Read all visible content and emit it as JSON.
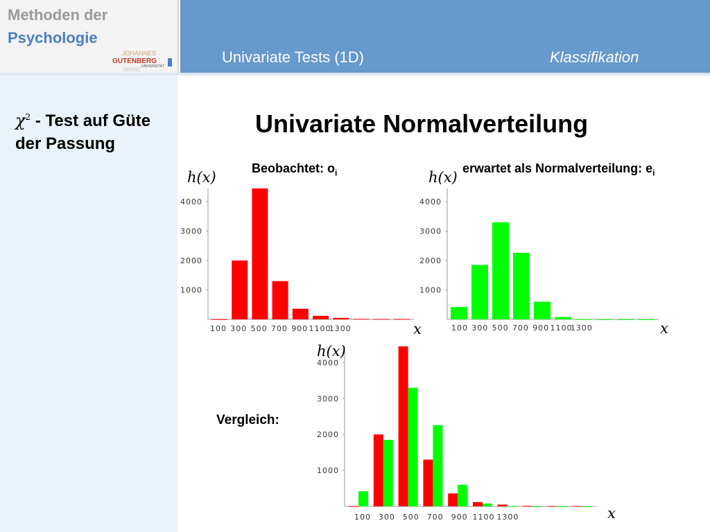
{
  "header": {
    "logo_line1": "Methoden der",
    "logo_line2": "Psychologie",
    "uni_logo_top": "JOHANNES",
    "uni_logo_main": "GUTENBERG",
    "uni_logo_sub": "UNIVERSITÄT",
    "uni_logo_city": "MAINZ",
    "title": "Univariate Tests (1D)",
    "section": "Klassifikation"
  },
  "sidebar": {
    "symbol": "χ",
    "symbol_sup": "2",
    "title_rest": " - Test auf Güte der Passung"
  },
  "main": {
    "title": "Univariate Normalverteilung",
    "observed_label": "Beobachtet: o",
    "observed_sub": "i",
    "expected_label": "erwartet als Normalverteilung: e",
    "expected_sub": "i",
    "comparison_label": "Vergleich:"
  },
  "colors": {
    "observed": "#ff0000",
    "expected": "#00ff00",
    "header_bar": "#6699cc",
    "sidebar_bg": "#eaf2fc"
  },
  "chart_data": [
    {
      "type": "bar",
      "ylabel": "h(x)",
      "xlabel": "x",
      "x_tick_labels": [
        "100",
        "300",
        "500",
        "700",
        "900",
        "1100",
        "1300"
      ],
      "y_tick_labels": [
        "1000",
        "2000",
        "3000",
        "4000"
      ],
      "ylim": [
        0,
        4450
      ],
      "series": [
        {
          "values": [
            5,
            2000,
            4450,
            1300,
            360,
            120,
            50,
            15,
            10,
            10
          ]
        }
      ]
    },
    {
      "type": "bar",
      "ylabel": "h(x)",
      "xlabel": "x",
      "x_tick_labels": [
        "100",
        "300",
        "500",
        "700",
        "900",
        "1100",
        "1300"
      ],
      "y_tick_labels": [
        "1000",
        "2000",
        "3000",
        "4000"
      ],
      "ylim": [
        0,
        4450
      ],
      "series": [
        {
          "values": [
            420,
            1850,
            3300,
            2260,
            600,
            80,
            5,
            2,
            1,
            1
          ]
        }
      ]
    },
    {
      "type": "bar",
      "ylabel": "h(x)",
      "xlabel": "x",
      "x_tick_labels": [
        "100",
        "300",
        "500",
        "700",
        "900",
        "1100",
        "1300"
      ],
      "y_tick_labels": [
        "1000",
        "2000",
        "3000",
        "4000"
      ],
      "ylim": [
        0,
        4450
      ],
      "series": [
        {
          "values": [
            5,
            2000,
            4450,
            1300,
            360,
            120,
            50,
            15,
            10,
            10
          ]
        },
        {
          "values": [
            420,
            1850,
            3300,
            2260,
            600,
            80,
            5,
            2,
            1,
            1
          ]
        }
      ]
    }
  ]
}
